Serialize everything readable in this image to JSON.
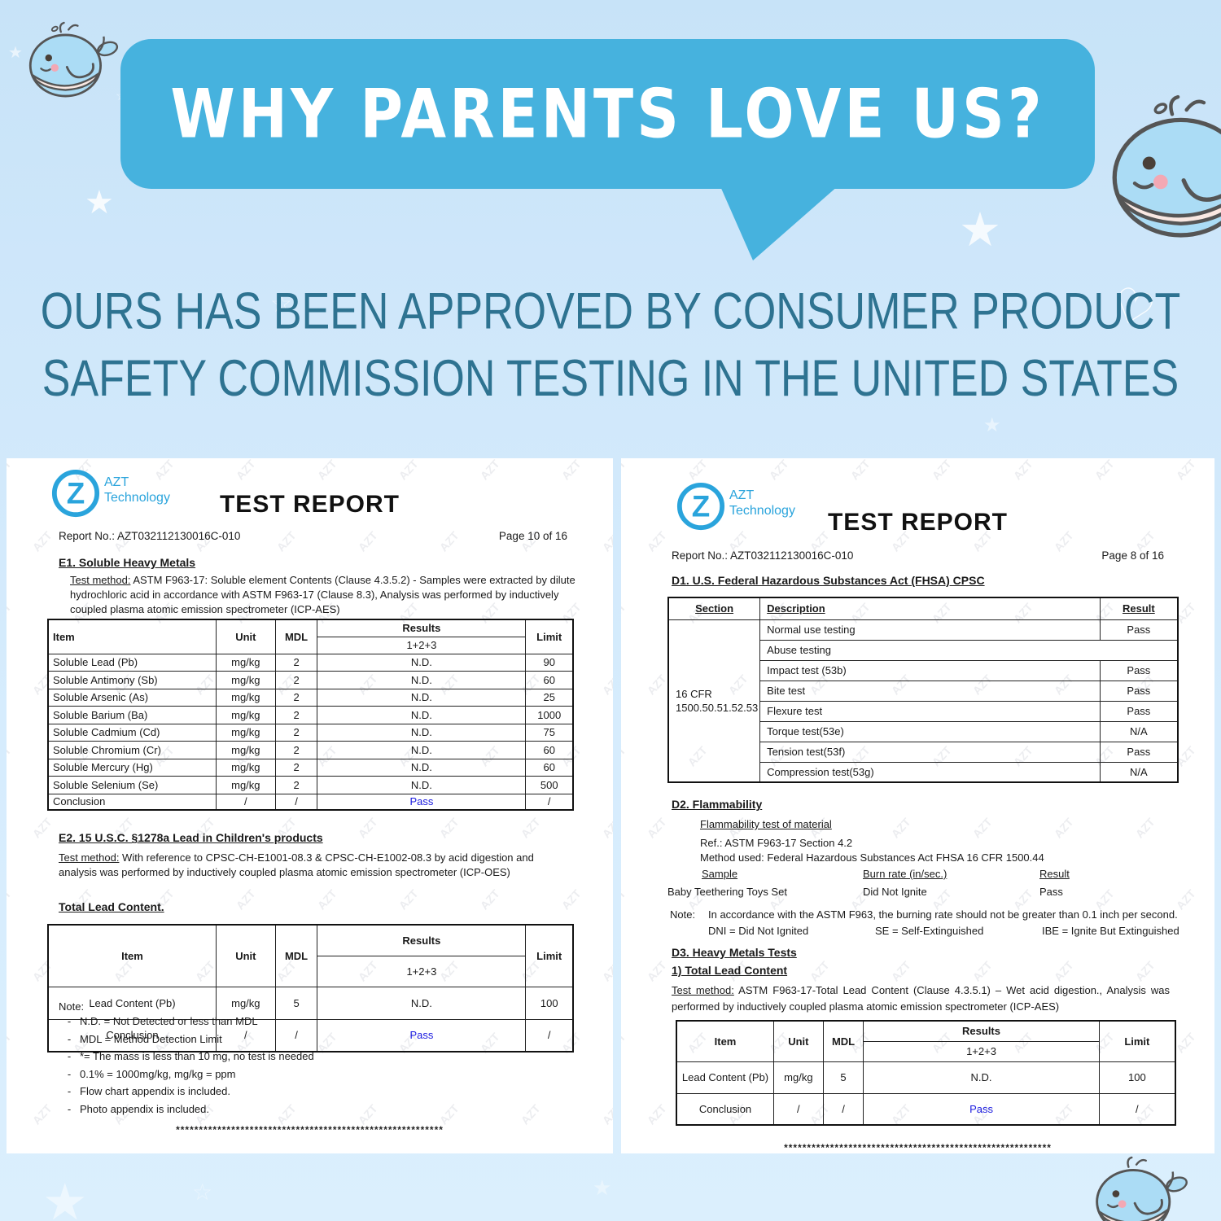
{
  "colors": {
    "bubble_blue": "#46b2de",
    "subtitle_teal": "#2e7391",
    "pass_blue": "#1a1adf",
    "logo_blue": "#2aa4dc"
  },
  "watermark": "AZT",
  "header": {
    "bubble_title": "WHY PARENTS LOVE US?",
    "subtitle_line1": "OURS HAS BEEN APPROVED BY CONSUMER PRODUCT",
    "subtitle_line2": "SAFETY COMMISSION TESTING IN THE UNITED STATES"
  },
  "logo": {
    "letter": "Z",
    "line1": "AZT",
    "line2": "Technology"
  },
  "left": {
    "title": "TEST REPORT",
    "report_no": "Report No.: AZT032112130016C-010",
    "page": "Page 10 of 16",
    "e1_heading": "E1. Soluble Heavy Metals",
    "e1_label": "Test method:",
    "e1_text": " ASTM F963-17: Soluble element Contents (Clause 4.3.5.2) - Samples were extracted by dilute hydrochloric acid in accordance with ASTM F963-17 (Clause 8.3), Analysis was performed by inductively coupled plasma atomic emission spectrometer (ICP-AES)",
    "table1": {
      "headers": {
        "item": "Item",
        "unit": "Unit",
        "mdl": "MDL",
        "results": "Results",
        "results_sub": "1+2+3",
        "limit": "Limit"
      },
      "rows": [
        [
          "Soluble Lead (Pb)",
          "mg/kg",
          "2",
          "N.D.",
          "90"
        ],
        [
          "Soluble Antimony (Sb)",
          "mg/kg",
          "2",
          "N.D.",
          "60"
        ],
        [
          "Soluble Arsenic (As)",
          "mg/kg",
          "2",
          "N.D.",
          "25"
        ],
        [
          "Soluble Barium (Ba)",
          "mg/kg",
          "2",
          "N.D.",
          "1000"
        ],
        [
          "Soluble Cadmium (Cd)",
          "mg/kg",
          "2",
          "N.D.",
          "75"
        ],
        [
          "Soluble Chromium (Cr)",
          "mg/kg",
          "2",
          "N.D.",
          "60"
        ],
        [
          "Soluble Mercury (Hg)",
          "mg/kg",
          "2",
          "N.D.",
          "60"
        ],
        [
          "Soluble Selenium (Se)",
          "mg/kg",
          "2",
          "N.D.",
          "500"
        ]
      ],
      "conclusion": [
        "Conclusion",
        "/",
        "/",
        "Pass",
        "/"
      ]
    },
    "e2_heading": "E2. 15 U.S.C. §1278a Lead in Children's products",
    "e2_label": "Test method:",
    "e2_text": " With reference to CPSC-CH-E1001-08.3 & CPSC-CH-E1002-08.3 by acid digestion and analysis was performed by inductively coupled plasma atomic emission spectrometer (ICP-OES)",
    "total_lead": "Total Lead Content.",
    "table2": {
      "headers": {
        "item": "Item",
        "unit": "Unit",
        "mdl": "MDL",
        "results": "Results",
        "results_sub": "1+2+3",
        "limit": "Limit"
      },
      "rows": [
        [
          "Lead Content (Pb)",
          "mg/kg",
          "5",
          "N.D.",
          "100"
        ]
      ],
      "conclusion": [
        "Conclusion",
        "/",
        "/",
        "Pass",
        "/"
      ]
    },
    "note_label": "Note:",
    "note_items": [
      "N.D. = Not Detected or less than MDL",
      "MDL = Method Detection Limit",
      "*= The mass is less than 10 mg, no test is needed",
      "0.1% = 1000mg/kg, mg/kg = ppm",
      "Flow chart appendix is included.",
      "Photo appendix is included."
    ],
    "separator": "**********************************************************"
  },
  "right": {
    "title": "TEST REPORT",
    "report_no": "Report No.: AZT032112130016C-010",
    "page": "Page 8 of 16",
    "d1_heading": "D1. U.S. Federal Hazardous Substances Act (FHSA) CPSC",
    "table_d1": {
      "headers": {
        "section": "Section",
        "description": "Description",
        "result": "Result"
      },
      "section_cell": "16 CFR\n1500.50.51.52.53",
      "rows": [
        {
          "description": "Normal use testing",
          "result": "Pass"
        },
        {
          "description": "Abuse testing",
          "result": ""
        },
        {
          "description": "Impact test (53b)",
          "result": "Pass"
        },
        {
          "description": "Bite test",
          "result": "Pass"
        },
        {
          "description": "Flexure test",
          "result": "Pass"
        },
        {
          "description": "Torque test(53e)",
          "result": "N/A"
        },
        {
          "description": "Tension test(53f)",
          "result": "Pass"
        },
        {
          "description": "Compression test(53g)",
          "result": "N/A"
        }
      ]
    },
    "d2_heading": "D2. Flammability",
    "d2_sub": "Flammability test of material",
    "d2_ref": "Ref.: ASTM F963-17 Section 4.2",
    "d2_method": "Method used: Federal Hazardous Substances Act FHSA 16 CFR 1500.44",
    "flam_headers": {
      "sample": "Sample",
      "burn": "Burn rate (in/sec.)",
      "result": "Result"
    },
    "flam_row": {
      "sample": "Baby Teethering Toys Set",
      "burn": "Did Not Ignite",
      "result": "Pass"
    },
    "d2_note_label": "Note:",
    "d2_note": "In accordance with the ASTM F963, the burning rate should not be greater than 0.1 inch per second.",
    "abbr1": "DNI = Did Not Ignited",
    "abbr2": "SE = Self-Extinguished",
    "abbr3": "IBE = Ignite But Extinguished",
    "d3_heading": "D3. Heavy Metals Tests",
    "d3_sub": "1) Total Lead Content",
    "d3_label": "Test method:",
    "d3_text": " ASTM F963-17-Total Lead Content (Clause 4.3.5.1) – Wet acid digestion., Analysis was performed by inductively coupled plasma atomic emission spectrometer (ICP-AES)",
    "table_d3": {
      "headers": {
        "item": "Item",
        "unit": "Unit",
        "mdl": "MDL",
        "results": "Results",
        "results_sub": "1+2+3",
        "limit": "Limit"
      },
      "rows": [
        [
          "Lead Content (Pb)",
          "mg/kg",
          "5",
          "N.D.",
          "100"
        ]
      ],
      "conclusion": [
        "Conclusion",
        "/",
        "/",
        "Pass",
        "/"
      ]
    },
    "separator": "**********************************************************"
  }
}
